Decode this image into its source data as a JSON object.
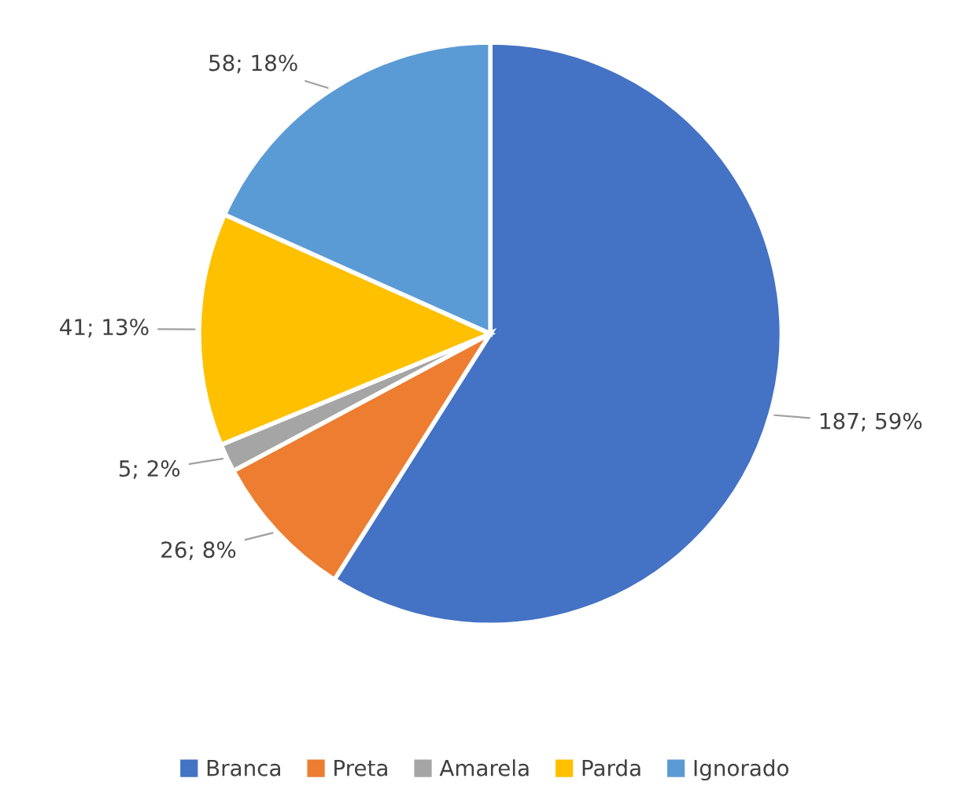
{
  "chart_data": {
    "type": "pie",
    "categories": [
      "Branca",
      "Preta",
      "Amarela",
      "Parda",
      "Ignorado"
    ],
    "values": [
      187,
      26,
      5,
      41,
      58
    ],
    "colors": [
      "#4472c4",
      "#ed7d31",
      "#a5a5a5",
      "#ffc000",
      "#5b9bd5"
    ],
    "value_labels": [
      "187; 59%",
      "26; 8%",
      "5; 2%",
      "41; 13%",
      "58; 18%"
    ],
    "legend": "bottom"
  }
}
